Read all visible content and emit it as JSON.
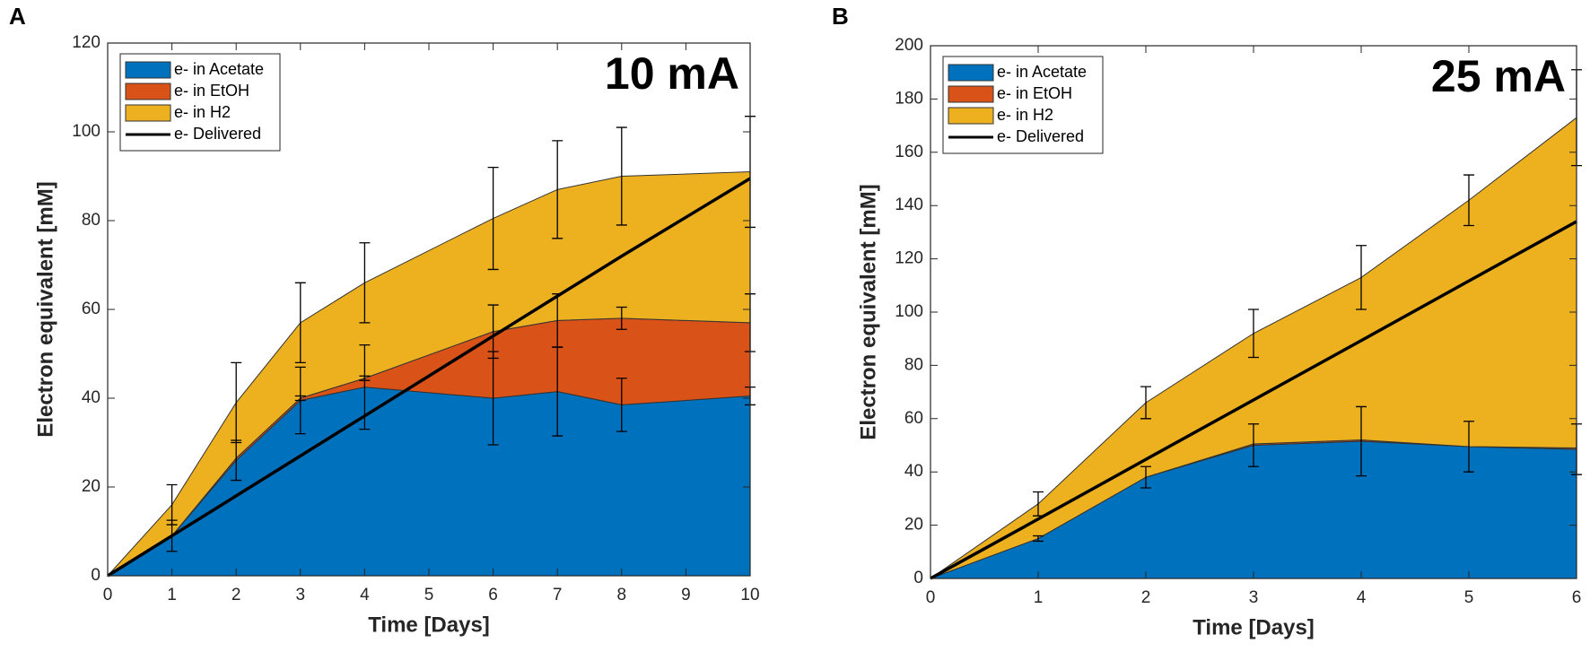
{
  "chart_data": [
    {
      "type": "area",
      "stacked": true,
      "label": "A",
      "annotation": "10 mA",
      "xlabel": "Time [Days]",
      "ylabel": "Electron equivalent [mM]",
      "x": [
        0,
        1,
        2,
        3,
        4,
        6,
        7,
        8,
        10
      ],
      "series": [
        {
          "name": "e- in Acetate",
          "color": "#0072bd",
          "values": [
            0,
            9,
            26,
            39.5,
            42.5,
            40,
            41.5,
            38.5,
            40.5
          ],
          "errors": [
            null,
            3.5,
            4.5,
            7.5,
            9.5,
            10.5,
            10,
            6,
            2
          ]
        },
        {
          "name": "e- in EtOH",
          "color": "#d95319",
          "values": [
            0,
            0,
            0.5,
            0.5,
            2,
            15,
            16,
            19.5,
            16.5
          ],
          "errors": [
            null,
            null,
            null,
            0.5,
            0.5,
            6,
            6,
            2.5,
            6.5
          ]
        },
        {
          "name": "e- in H2",
          "color": "#edb120",
          "values": [
            0,
            7,
            12.5,
            17,
            21.5,
            25.5,
            29.5,
            32,
            34
          ],
          "errors": [
            null,
            4.5,
            9,
            9,
            9,
            11.5,
            11,
            11,
            12.5
          ]
        },
        {
          "name": "e- Delivered",
          "type": "line",
          "color": "#000000",
          "values": [
            0,
            9,
            18,
            27,
            36,
            54,
            63,
            72,
            89.5
          ]
        }
      ],
      "xlim": [
        0,
        10
      ],
      "xticks": [
        0,
        1,
        2,
        3,
        4,
        5,
        6,
        7,
        8,
        9,
        10
      ],
      "ylim": [
        0,
        120
      ],
      "yticks": [
        0,
        20,
        40,
        60,
        80,
        100,
        120
      ],
      "legend": "upper left"
    },
    {
      "type": "area",
      "stacked": true,
      "label": "B",
      "annotation": "25 mA",
      "xlabel": "Time [Days]",
      "ylabel": "Electron equivalent [mM]",
      "x": [
        0,
        1,
        2,
        3,
        4,
        5,
        6
      ],
      "series": [
        {
          "name": "e- in Acetate",
          "color": "#0072bd",
          "values": [
            0,
            15,
            38,
            50,
            51.5,
            49.5,
            48.5
          ],
          "errors": [
            null,
            1,
            4,
            8,
            13,
            9.5,
            9.5
          ]
        },
        {
          "name": "e- in EtOH",
          "color": "#d95319",
          "values": [
            0,
            0,
            0,
            0.5,
            0.5,
            0,
            0.5
          ],
          "errors": [
            null,
            null,
            null,
            null,
            null,
            null,
            null
          ]
        },
        {
          "name": "e- in H2",
          "color": "#edb120",
          "values": [
            0,
            13,
            28,
            41.5,
            61,
            92.5,
            124
          ],
          "errors": [
            null,
            4.5,
            6,
            9,
            12,
            9.5,
            18
          ]
        },
        {
          "name": "e- Delivered",
          "type": "line",
          "color": "#000000",
          "values": [
            0,
            22.3,
            44.7,
            67,
            89.3,
            111.7,
            134
          ]
        }
      ],
      "xlim": [
        0,
        6
      ],
      "xticks": [
        0,
        1,
        2,
        3,
        4,
        5,
        6
      ],
      "ylim": [
        0,
        200
      ],
      "yticks": [
        0,
        20,
        40,
        60,
        80,
        100,
        120,
        140,
        160,
        180,
        200
      ],
      "legend": "upper left"
    }
  ]
}
